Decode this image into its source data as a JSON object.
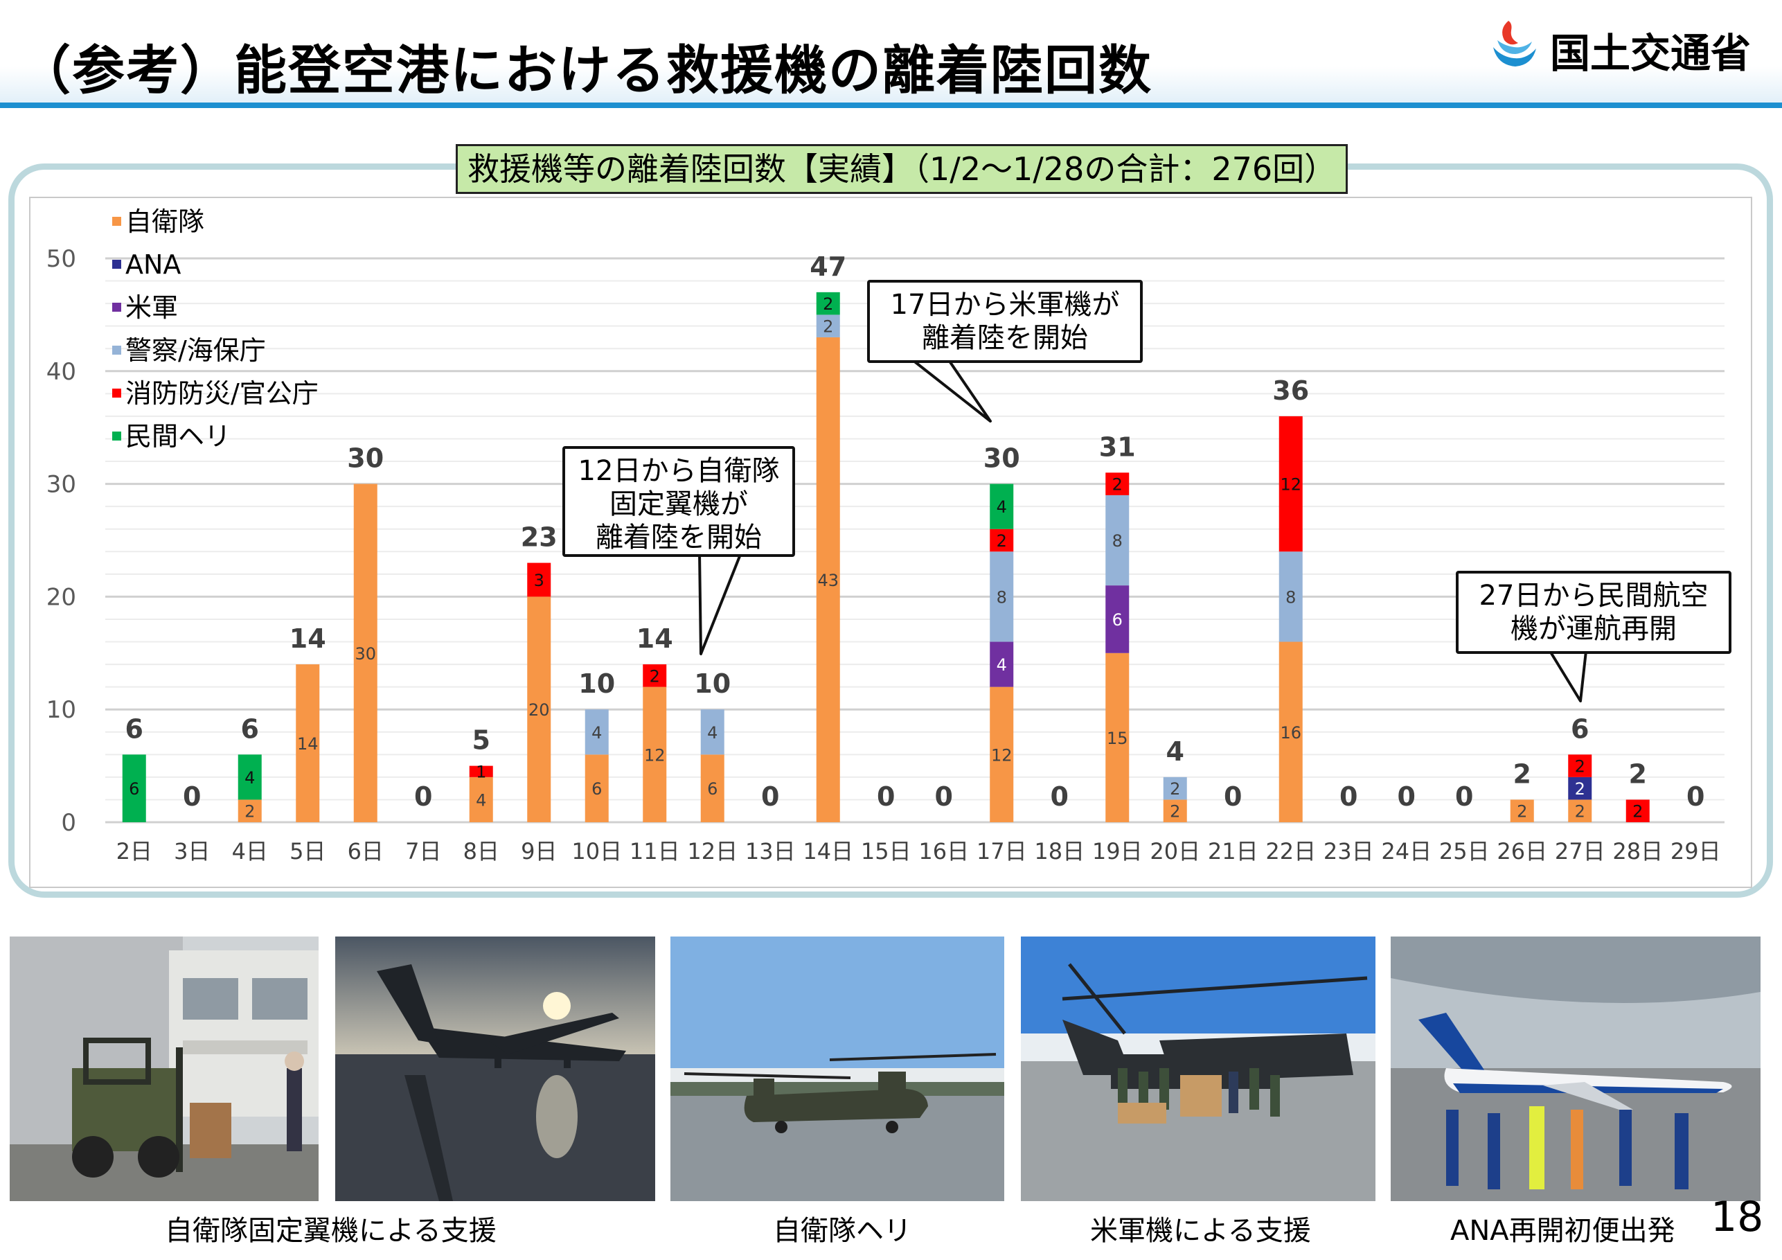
{
  "header": {
    "title": "（参考）能登空港における救援機の離着陸回数",
    "logo_text": "国土交通省"
  },
  "chart_heading": "救援機等の離着陸回数【実績】（1/2～1/28の合計：276回）",
  "colors": {
    "jsdf": "#f79646",
    "ana": "#2e3192",
    "us": "#7030a0",
    "police": "#95b3d7",
    "fire": "#ff0000",
    "private": "#00b050"
  },
  "chart_data": {
    "type": "bar",
    "stacked": true,
    "categories": [
      "2日",
      "3日",
      "4日",
      "5日",
      "6日",
      "7日",
      "8日",
      "9日",
      "10日",
      "11日",
      "12日",
      "13日",
      "14日",
      "15日",
      "16日",
      "17日",
      "18日",
      "19日",
      "20日",
      "21日",
      "22日",
      "23日",
      "24日",
      "25日",
      "26日",
      "27日",
      "28日",
      "29日"
    ],
    "ylim": [
      0,
      50
    ],
    "yticks": [
      "0",
      "10",
      "20",
      "30",
      "40",
      "50"
    ],
    "grid": true,
    "legend_position": "top-left",
    "series": [
      {
        "name": "自衛隊",
        "color": "#f79646",
        "values": [
          0,
          0,
          2,
          14,
          30,
          0,
          4,
          20,
          6,
          12,
          6,
          0,
          43,
          0,
          0,
          12,
          0,
          15,
          2,
          0,
          16,
          0,
          0,
          0,
          2,
          2,
          0,
          0
        ]
      },
      {
        "name": "ANA",
        "color": "#2e3192",
        "values": [
          0,
          0,
          0,
          0,
          0,
          0,
          0,
          0,
          0,
          0,
          0,
          0,
          0,
          0,
          0,
          0,
          0,
          0,
          0,
          0,
          0,
          0,
          0,
          0,
          0,
          2,
          0,
          0
        ]
      },
      {
        "name": "米軍",
        "color": "#7030a0",
        "values": [
          0,
          0,
          0,
          0,
          0,
          0,
          0,
          0,
          0,
          0,
          0,
          0,
          0,
          0,
          0,
          4,
          0,
          6,
          0,
          0,
          0,
          0,
          0,
          0,
          0,
          0,
          0,
          0
        ]
      },
      {
        "name": "警察/海保庁",
        "color": "#95b3d7",
        "values": [
          0,
          0,
          0,
          0,
          0,
          0,
          0,
          0,
          4,
          0,
          4,
          0,
          2,
          0,
          0,
          8,
          0,
          8,
          2,
          0,
          8,
          0,
          0,
          0,
          0,
          0,
          0,
          0
        ]
      },
      {
        "name": "消防防災/官公庁",
        "color": "#ff0000",
        "values": [
          0,
          0,
          0,
          0,
          0,
          0,
          1,
          3,
          0,
          2,
          0,
          0,
          0,
          0,
          0,
          2,
          0,
          2,
          0,
          0,
          12,
          0,
          0,
          0,
          0,
          2,
          2,
          0
        ]
      },
      {
        "name": "民間ヘリ",
        "color": "#00b050",
        "values": [
          6,
          0,
          4,
          0,
          0,
          0,
          0,
          0,
          0,
          0,
          0,
          0,
          2,
          0,
          0,
          4,
          0,
          0,
          0,
          0,
          0,
          0,
          0,
          0,
          0,
          0,
          0,
          0
        ]
      }
    ],
    "totals": [
      6,
      0,
      6,
      14,
      30,
      0,
      5,
      23,
      10,
      14,
      10,
      0,
      47,
      0,
      0,
      30,
      0,
      31,
      4,
      0,
      36,
      0,
      0,
      0,
      2,
      6,
      2,
      0
    ]
  },
  "callouts": [
    {
      "text_lines": [
        "12日から自衛隊",
        "固定翼機が",
        "離着陸を開始"
      ]
    },
    {
      "text_lines": [
        "17日から米軍機が",
        "離着陸を開始"
      ]
    },
    {
      "text_lines": [
        "27日から民間航空",
        "機が運航再開"
      ]
    }
  ],
  "photos": [
    {
      "caption": "自衛隊固定翼機による支援"
    },
    {
      "caption": "自衛隊ヘリ"
    },
    {
      "caption": "米軍機による支援"
    },
    {
      "caption": "ANA再開初便出発"
    }
  ],
  "page_number": "18"
}
